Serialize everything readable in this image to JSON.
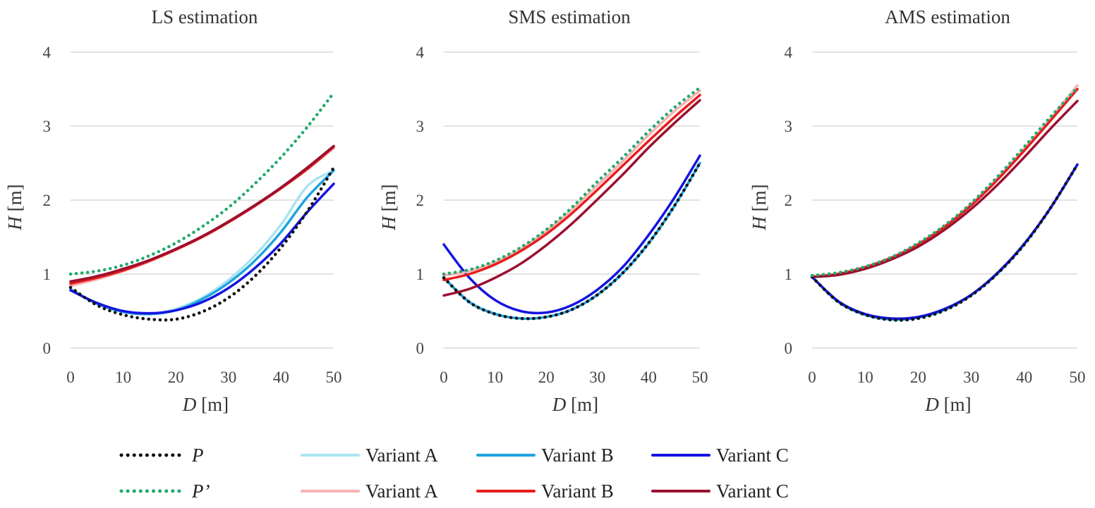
{
  "chart_data": [
    {
      "type": "line",
      "title": "LS estimation",
      "xlabel": {
        "var": "D",
        "unit": "[m]"
      },
      "ylabel": {
        "var": "H",
        "unit": "[m]"
      },
      "xlim": [
        0,
        50
      ],
      "ylim": [
        0,
        4
      ],
      "xticks": [
        "0",
        "10",
        "20",
        "30",
        "40",
        "50"
      ],
      "yticks": [
        "0",
        "1",
        "2",
        "3",
        "4"
      ],
      "grid": true,
      "x": [
        0,
        5,
        10,
        15,
        20,
        25,
        30,
        35,
        40,
        45,
        50
      ],
      "series": [
        {
          "key": "P",
          "values": [
            0.82,
            0.58,
            0.45,
            0.39,
            0.39,
            0.49,
            0.68,
            0.97,
            1.36,
            1.85,
            2.44
          ]
        },
        {
          "key": "Pp",
          "values": [
            1.0,
            1.04,
            1.12,
            1.25,
            1.42,
            1.64,
            1.9,
            2.22,
            2.58,
            2.99,
            3.45
          ]
        },
        {
          "key": "A_blue",
          "values": [
            0.8,
            0.6,
            0.49,
            0.46,
            0.53,
            0.68,
            0.92,
            1.25,
            1.67,
            2.19,
            2.4
          ]
        },
        {
          "key": "B_blue",
          "values": [
            0.79,
            0.6,
            0.49,
            0.46,
            0.51,
            0.66,
            0.88,
            1.18,
            1.57,
            2.04,
            2.4
          ]
        },
        {
          "key": "C_blue",
          "values": [
            0.78,
            0.61,
            0.5,
            0.47,
            0.51,
            0.62,
            0.81,
            1.08,
            1.42,
            1.84,
            2.22
          ]
        },
        {
          "key": "A_red",
          "values": [
            0.84,
            0.93,
            1.04,
            1.17,
            1.33,
            1.5,
            1.7,
            1.92,
            2.16,
            2.42,
            2.7
          ]
        },
        {
          "key": "B_red",
          "values": [
            0.87,
            0.95,
            1.05,
            1.18,
            1.33,
            1.5,
            1.7,
            1.92,
            2.16,
            2.42,
            2.72
          ]
        },
        {
          "key": "C_red",
          "values": [
            0.9,
            0.97,
            1.07,
            1.19,
            1.34,
            1.51,
            1.71,
            1.93,
            2.17,
            2.44,
            2.73
          ]
        }
      ]
    },
    {
      "type": "line",
      "title": "SMS estimation",
      "xlabel": {
        "var": "D",
        "unit": "[m]"
      },
      "ylabel": {
        "var": "H",
        "unit": "[m]"
      },
      "xlim": [
        0,
        50
      ],
      "ylim": [
        0,
        4
      ],
      "xticks": [
        "0",
        "10",
        "20",
        "30",
        "40",
        "50"
      ],
      "yticks": [
        "0",
        "1",
        "2",
        "3",
        "4"
      ],
      "grid": true,
      "x": [
        0,
        5,
        10,
        15,
        20,
        25,
        30,
        35,
        40,
        45,
        50
      ],
      "series": [
        {
          "key": "P",
          "values": [
            0.95,
            0.62,
            0.46,
            0.4,
            0.42,
            0.52,
            0.72,
            1.02,
            1.42,
            1.92,
            2.5
          ]
        },
        {
          "key": "Pp",
          "values": [
            1.0,
            1.06,
            1.18,
            1.36,
            1.6,
            1.9,
            2.25,
            2.58,
            2.93,
            3.25,
            3.52
          ]
        },
        {
          "key": "A_blue",
          "values": [
            0.96,
            0.63,
            0.47,
            0.4,
            0.42,
            0.52,
            0.72,
            1.01,
            1.41,
            1.91,
            2.5
          ]
        },
        {
          "key": "B_blue",
          "values": [
            0.95,
            0.62,
            0.46,
            0.4,
            0.42,
            0.52,
            0.72,
            1.02,
            1.42,
            1.92,
            2.5
          ]
        },
        {
          "key": "C_blue",
          "values": [
            1.4,
            0.95,
            0.65,
            0.5,
            0.48,
            0.58,
            0.79,
            1.1,
            1.53,
            2.03,
            2.6
          ]
        },
        {
          "key": "A_red",
          "values": [
            0.98,
            1.04,
            1.16,
            1.34,
            1.58,
            1.87,
            2.2,
            2.53,
            2.88,
            3.2,
            3.48
          ]
        },
        {
          "key": "B_red",
          "values": [
            0.92,
            1.0,
            1.13,
            1.31,
            1.54,
            1.82,
            2.14,
            2.47,
            2.8,
            3.12,
            3.42
          ]
        },
        {
          "key": "C_red",
          "values": [
            0.71,
            0.8,
            0.95,
            1.14,
            1.39,
            1.68,
            2.01,
            2.35,
            2.71,
            3.04,
            3.35
          ]
        }
      ]
    },
    {
      "type": "line",
      "title": "AMS estimation",
      "xlabel": {
        "var": "D",
        "unit": "[m]"
      },
      "ylabel": {
        "var": "H",
        "unit": "[m]"
      },
      "xlim": [
        0,
        50
      ],
      "ylim": [
        0,
        4
      ],
      "xticks": [
        "0",
        "10",
        "20",
        "30",
        "40",
        "50"
      ],
      "yticks": [
        "0",
        "1",
        "2",
        "3",
        "4"
      ],
      "grid": true,
      "x": [
        0,
        5,
        10,
        15,
        20,
        25,
        30,
        35,
        40,
        45,
        50
      ],
      "series": [
        {
          "key": "P",
          "values": [
            0.96,
            0.62,
            0.45,
            0.38,
            0.4,
            0.51,
            0.71,
            1.01,
            1.4,
            1.9,
            2.48
          ]
        },
        {
          "key": "Pp",
          "values": [
            0.98,
            1.02,
            1.1,
            1.23,
            1.42,
            1.66,
            1.96,
            2.32,
            2.72,
            3.13,
            3.52
          ]
        },
        {
          "key": "A_blue",
          "values": [
            0.96,
            0.62,
            0.45,
            0.38,
            0.41,
            0.51,
            0.71,
            1.01,
            1.4,
            1.9,
            2.48
          ]
        },
        {
          "key": "B_blue",
          "values": [
            0.96,
            0.62,
            0.45,
            0.39,
            0.41,
            0.52,
            0.72,
            1.01,
            1.41,
            1.9,
            2.48
          ]
        },
        {
          "key": "C_blue",
          "values": [
            0.96,
            0.63,
            0.46,
            0.4,
            0.42,
            0.53,
            0.72,
            1.02,
            1.41,
            1.9,
            2.48
          ]
        },
        {
          "key": "A_red",
          "values": [
            0.97,
            1.01,
            1.1,
            1.23,
            1.41,
            1.65,
            1.95,
            2.3,
            2.7,
            3.11,
            3.55
          ]
        },
        {
          "key": "B_red",
          "values": [
            0.96,
            1.0,
            1.09,
            1.22,
            1.4,
            1.64,
            1.93,
            2.28,
            2.67,
            3.08,
            3.5
          ]
        },
        {
          "key": "C_red",
          "values": [
            0.96,
            0.99,
            1.07,
            1.2,
            1.37,
            1.6,
            1.88,
            2.21,
            2.58,
            2.97,
            3.34
          ]
        }
      ]
    }
  ],
  "series_styles": {
    "P": {
      "color": "#111111",
      "dashed": true
    },
    "Pp": {
      "color": "#1faa6b",
      "dashed": true
    },
    "A_blue": {
      "color": "#a9e4f2",
      "dashed": false
    },
    "B_blue": {
      "color": "#1fa3e0",
      "dashed": false
    },
    "C_blue": {
      "color": "#1414e0",
      "dashed": false
    },
    "A_red": {
      "color": "#f6b3b3",
      "dashed": false
    },
    "B_red": {
      "color": "#e81c1c",
      "dashed": false
    },
    "C_red": {
      "color": "#9b1030",
      "dashed": false
    }
  },
  "legend": {
    "rows": [
      [
        {
          "key": "P",
          "label": "P",
          "italic": true
        },
        {
          "key": "A_blue",
          "label": "Variant A",
          "italic": false
        },
        {
          "key": "B_blue",
          "label": "Variant B",
          "italic": false
        },
        {
          "key": "C_blue",
          "label": "Variant C",
          "italic": false
        }
      ],
      [
        {
          "key": "Pp",
          "label": "P’",
          "italic": true
        },
        {
          "key": "A_red",
          "label": "Variant A",
          "italic": false
        },
        {
          "key": "B_red",
          "label": "Variant B",
          "italic": false
        },
        {
          "key": "C_red",
          "label": "Variant C",
          "italic": false
        }
      ]
    ]
  }
}
